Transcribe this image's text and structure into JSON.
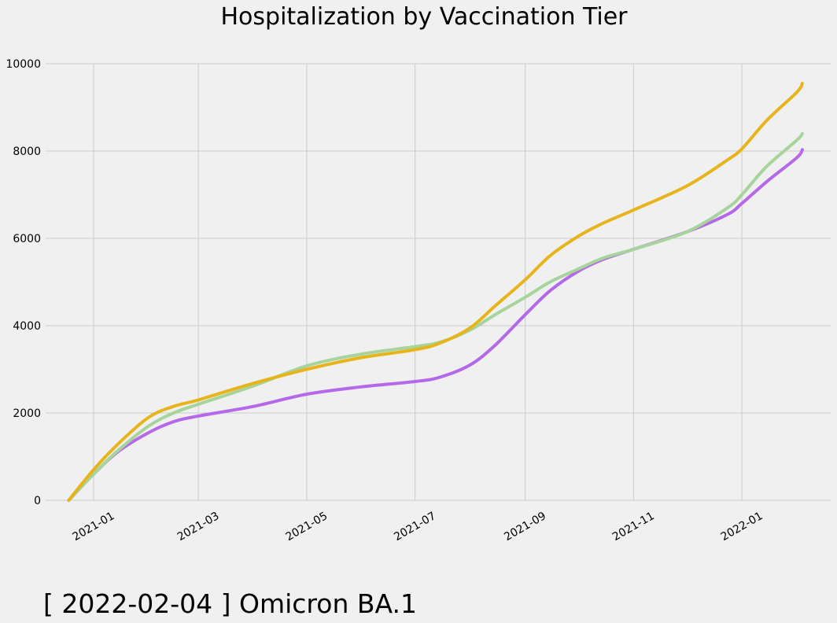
{
  "caption": {
    "date": "2022-02-04",
    "text": "[ 2022-02-04 ] Omicron BA.1"
  },
  "chart_data": {
    "type": "line",
    "title": "Hospitalization by Vaccination Tier",
    "xlabel": "",
    "ylabel": "",
    "ylim": [
      0,
      10000
    ],
    "xlim": [
      "2020-12-05",
      "2022-02-20"
    ],
    "yticks": [
      0,
      2000,
      4000,
      6000,
      8000,
      10000
    ],
    "xticks": [
      "2021-01-01",
      "2021-03-01",
      "2021-05-01",
      "2021-07-01",
      "2021-09-01",
      "2021-11-01",
      "2022-01-01"
    ],
    "xtick_labels": [
      "2021-01",
      "2021-03",
      "2021-05",
      "2021-07",
      "2021-09",
      "2021-11",
      "2022-01"
    ],
    "grid": true,
    "legend": "none",
    "x": [
      "2020-12-18",
      "2021-01-01",
      "2021-01-15",
      "2021-02-01",
      "2021-02-15",
      "2021-03-01",
      "2021-04-01",
      "2021-05-01",
      "2021-06-01",
      "2021-07-01",
      "2021-07-15",
      "2021-08-01",
      "2021-08-15",
      "2021-09-01",
      "2021-09-15",
      "2021-10-01",
      "2021-10-15",
      "2021-11-01",
      "2021-12-01",
      "2021-12-24",
      "2022-01-01",
      "2022-01-15",
      "2022-02-01",
      "2022-02-04"
    ],
    "series": [
      {
        "color": "#e8b41c",
        "values": [
          0,
          700,
          1300,
          1900,
          2150,
          2300,
          2680,
          3000,
          3270,
          3450,
          3600,
          3950,
          4450,
          5050,
          5600,
          6050,
          6350,
          6650,
          7200,
          7800,
          8050,
          8700,
          9350,
          9550
        ]
      },
      {
        "color": "#a6d49b",
        "values": [
          0,
          600,
          1150,
          1700,
          2000,
          2200,
          2620,
          3080,
          3350,
          3520,
          3620,
          3900,
          4250,
          4650,
          5000,
          5300,
          5550,
          5750,
          6150,
          6700,
          7000,
          7650,
          8250,
          8400
        ]
      },
      {
        "color": "#b469e8",
        "values": [
          0,
          600,
          1120,
          1550,
          1800,
          1930,
          2150,
          2430,
          2600,
          2720,
          2820,
          3100,
          3550,
          4250,
          4800,
          5250,
          5520,
          5750,
          6150,
          6550,
          6800,
          7300,
          7850,
          8030
        ]
      }
    ]
  }
}
